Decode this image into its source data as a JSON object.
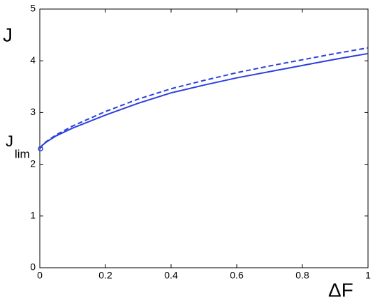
{
  "chart_data": {
    "type": "line",
    "y_label": "J",
    "x_label": "ΔF",
    "annotation": {
      "text": "J",
      "subscript": "lim"
    },
    "x": [
      0,
      0.01,
      0.02,
      0.05,
      0.1,
      0.2,
      0.3,
      0.4,
      0.5,
      0.6,
      0.7,
      0.8,
      0.9,
      1
    ],
    "series": [
      {
        "color": "#2b3fe0",
        "dash": false,
        "marker_at_start": true,
        "values": [
          2.3,
          2.38,
          2.43,
          2.55,
          2.7,
          2.95,
          3.18,
          3.38,
          3.53,
          3.67,
          3.79,
          3.91,
          4.03,
          4.14
        ]
      },
      {
        "color": "#2b3fe0",
        "dash": true,
        "marker_at_start": false,
        "values": [
          2.3,
          2.39,
          2.44,
          2.57,
          2.74,
          3.02,
          3.26,
          3.46,
          3.62,
          3.77,
          3.9,
          4.02,
          4.14,
          4.25
        ]
      }
    ],
    "xlim": [
      0,
      1
    ],
    "ylim": [
      0,
      5
    ],
    "xticks": [
      0,
      0.2,
      0.4,
      0.6,
      0.8,
      1
    ],
    "yticks": [
      0,
      1,
      2,
      3,
      4,
      5
    ],
    "grid": false
  }
}
